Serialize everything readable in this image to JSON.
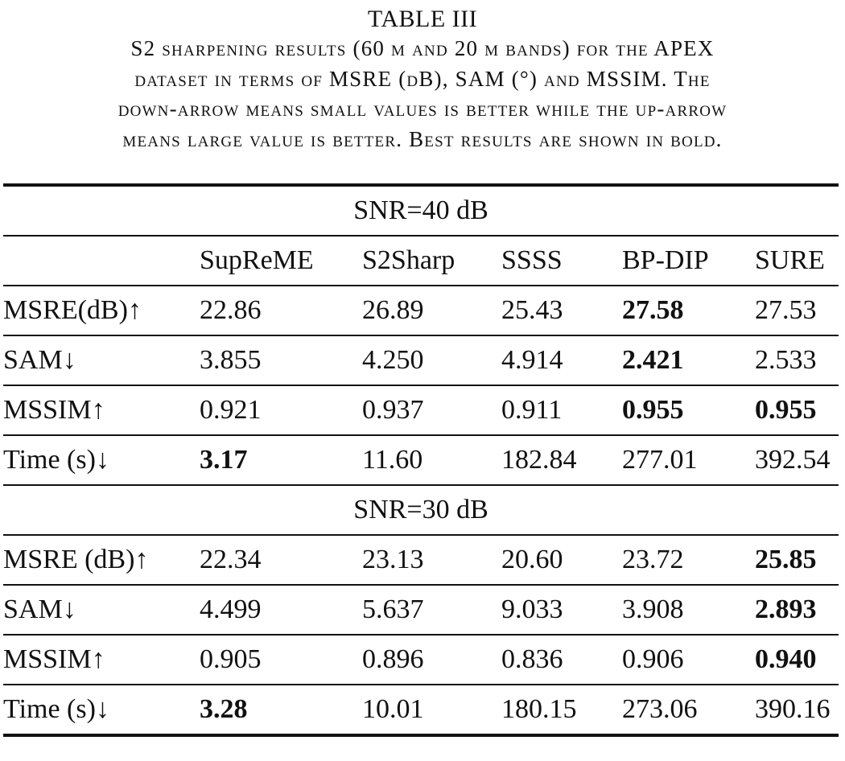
{
  "caption": {
    "label": "TABLE III",
    "lines": [
      "S2 sharpening results (60 m and 20 m bands) for the APEX",
      "dataset in terms of MSRE (dB), SAM (°) and MSSIM. The",
      "down-arrow means small values is better while the up-arrow",
      "means large value is better. Best results are shown in bold."
    ]
  },
  "table": {
    "methods": [
      "SupReME",
      "S2Sharp",
      "SSSS",
      "BP-DIP",
      "SURE"
    ],
    "sections": [
      {
        "title": "SNR=40 dB",
        "rows": [
          {
            "metric": "MSRE(dB)↑",
            "values": [
              "22.86",
              "26.89",
              "25.43",
              "27.58",
              "27.53"
            ],
            "bold": [
              false,
              false,
              false,
              true,
              false
            ]
          },
          {
            "metric": "SAM↓",
            "values": [
              "3.855",
              "4.250",
              "4.914",
              "2.421",
              "2.533"
            ],
            "bold": [
              false,
              false,
              false,
              true,
              false
            ]
          },
          {
            "metric": "MSSIM↑",
            "values": [
              "0.921",
              "0.937",
              "0.911",
              "0.955",
              "0.955"
            ],
            "bold": [
              false,
              false,
              false,
              true,
              true
            ]
          },
          {
            "metric": "Time (s)↓",
            "values": [
              "3.17",
              "11.60",
              "182.84",
              "277.01",
              "392.54"
            ],
            "bold": [
              true,
              false,
              false,
              false,
              false
            ]
          }
        ]
      },
      {
        "title": "SNR=30 dB",
        "rows": [
          {
            "metric": "MSRE (dB)↑",
            "values": [
              "22.34",
              "23.13",
              "20.60",
              "23.72",
              "25.85"
            ],
            "bold": [
              false,
              false,
              false,
              false,
              true
            ]
          },
          {
            "metric": "SAM↓",
            "values": [
              "4.499",
              "5.637",
              "9.033",
              "3.908",
              "2.893"
            ],
            "bold": [
              false,
              false,
              false,
              false,
              true
            ]
          },
          {
            "metric": "MSSIM↑",
            "values": [
              "0.905",
              "0.896",
              "0.836",
              "0.906",
              "0.940"
            ],
            "bold": [
              false,
              false,
              false,
              false,
              true
            ]
          },
          {
            "metric": "Time (s)↓",
            "values": [
              "3.28",
              "10.01",
              "180.15",
              "273.06",
              "390.16"
            ],
            "bold": [
              true,
              false,
              false,
              false,
              false
            ]
          }
        ]
      }
    ]
  }
}
